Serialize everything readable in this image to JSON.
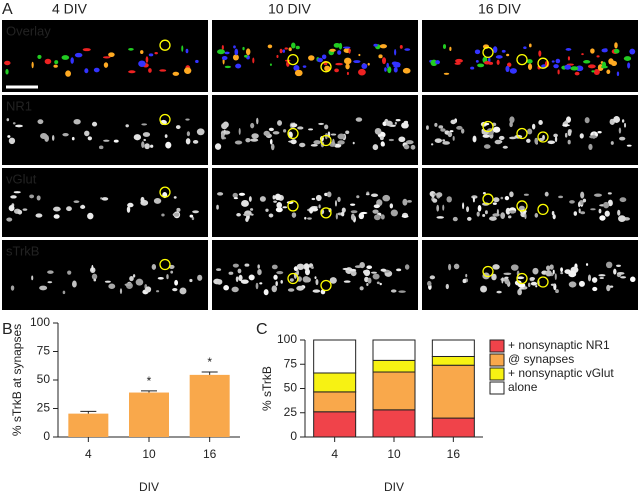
{
  "panel_a": {
    "label": "A",
    "columns": [
      "4 DIV",
      "10 DIV",
      "16 DIV"
    ],
    "rows": [
      {
        "label": "Overlay",
        "color": "#f3e3c3"
      },
      {
        "label": "NR1",
        "color": "#3ec43e"
      },
      {
        "label": "vGlut",
        "color": "#e8201c"
      },
      {
        "label": "sTrkB",
        "color": "#2a3ee0"
      }
    ]
  },
  "chart_data": [
    {
      "type": "bar",
      "panel_label": "B",
      "categories": [
        "4",
        "10",
        "16"
      ],
      "values": [
        20.5,
        39,
        54.5
      ],
      "errors": [
        2,
        1.5,
        2.5
      ],
      "significance": [
        null,
        "*",
        "*"
      ],
      "color": "#f9a84b",
      "ylabel": "% sTrkB at synapses",
      "xlabel": "DIV",
      "ylim": [
        0,
        100
      ],
      "yticks": [
        0,
        25,
        50,
        75,
        100
      ]
    },
    {
      "type": "stacked_bar",
      "panel_label": "C",
      "categories": [
        "4",
        "10",
        "16"
      ],
      "ylabel": "% sTrkB",
      "xlabel": "DIV",
      "ylim": [
        0,
        100
      ],
      "yticks": [
        0,
        25,
        50,
        75,
        100
      ],
      "series": [
        {
          "name": "+ nonsynaptic NR1",
          "color": "#f0434a",
          "values": [
            26,
            28,
            19.5
          ]
        },
        {
          "name": "@ synapses",
          "color": "#f9a84b",
          "values": [
            20.5,
            39,
            54.5
          ]
        },
        {
          "name": "+ nonsynaptic vGlut",
          "color": "#f7f213",
          "values": [
            19.5,
            12,
            9
          ]
        },
        {
          "name": "alone",
          "color": "#ffffff",
          "values": [
            34,
            21,
            17
          ]
        }
      ]
    }
  ]
}
